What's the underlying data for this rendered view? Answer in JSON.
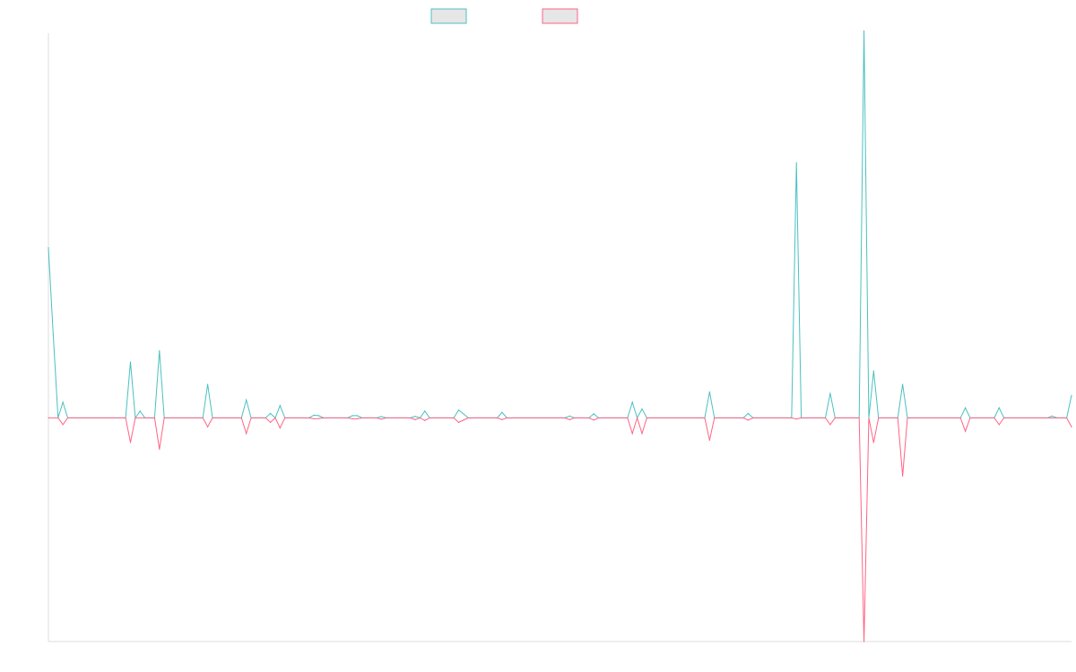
{
  "chart_data": {
    "type": "line",
    "title": "",
    "xlabel": "",
    "ylabel": "",
    "legend": {
      "position": "top-center",
      "entries": [
        {
          "name": "",
          "color": "#4bc0c0",
          "fill": "#e6e6e6"
        },
        {
          "name": "",
          "color": "#ff6384",
          "fill": "#e6e6e6"
        }
      ]
    },
    "grid": false,
    "ylim": [
      -1.0,
      1.72
    ],
    "x_count": 212,
    "series": [
      {
        "name": "",
        "color": "#4bc0c0",
        "points": [
          [
            0,
            0.76
          ],
          [
            1,
            0.37
          ],
          [
            3,
            0.07
          ],
          [
            17,
            0.25
          ],
          [
            19,
            0.03
          ],
          [
            23,
            0.3
          ],
          [
            33,
            0.15
          ],
          [
            41,
            0.08
          ],
          [
            46,
            0.02
          ],
          [
            48,
            0.055
          ],
          [
            55,
            0.012
          ],
          [
            56,
            0.01
          ],
          [
            63,
            0.01
          ],
          [
            64,
            0.01
          ],
          [
            69,
            0.006
          ],
          [
            76,
            0.007
          ],
          [
            78,
            0.03
          ],
          [
            85,
            0.035
          ],
          [
            86,
            0.018
          ],
          [
            94,
            0.025
          ],
          [
            108,
            0.008
          ],
          [
            113,
            0.018
          ],
          [
            121,
            0.07
          ],
          [
            123,
            0.04
          ],
          [
            137,
            0.116
          ],
          [
            145,
            0.02
          ],
          [
            155,
            1.14
          ],
          [
            162,
            0.11
          ],
          [
            169,
            1.73
          ],
          [
            171,
            0.21
          ],
          [
            177,
            0.15
          ],
          [
            190,
            0.045
          ],
          [
            197,
            0.045
          ],
          [
            208,
            0.008
          ],
          [
            212,
            0.1
          ]
        ]
      },
      {
        "name": "",
        "color": "#ff6384",
        "points": [
          [
            0,
            0.0
          ],
          [
            3,
            -0.03
          ],
          [
            17,
            -0.11
          ],
          [
            23,
            -0.14
          ],
          [
            33,
            -0.04
          ],
          [
            41,
            -0.07
          ],
          [
            46,
            -0.02
          ],
          [
            48,
            -0.045
          ],
          [
            55,
            -0.004
          ],
          [
            56,
            -0.003
          ],
          [
            63,
            -0.004
          ],
          [
            64,
            -0.004
          ],
          [
            69,
            -0.006
          ],
          [
            76,
            -0.008
          ],
          [
            78,
            -0.012
          ],
          [
            85,
            -0.02
          ],
          [
            86,
            -0.01
          ],
          [
            94,
            -0.008
          ],
          [
            108,
            -0.008
          ],
          [
            113,
            -0.01
          ],
          [
            121,
            -0.07
          ],
          [
            123,
            -0.07
          ],
          [
            137,
            -0.1
          ],
          [
            145,
            -0.01
          ],
          [
            155,
            -0.005
          ],
          [
            162,
            -0.03
          ],
          [
            169,
            -1.0
          ],
          [
            171,
            -0.11
          ],
          [
            177,
            -0.26
          ],
          [
            190,
            -0.06
          ],
          [
            197,
            -0.03
          ],
          [
            212,
            -0.04
          ]
        ]
      }
    ]
  }
}
